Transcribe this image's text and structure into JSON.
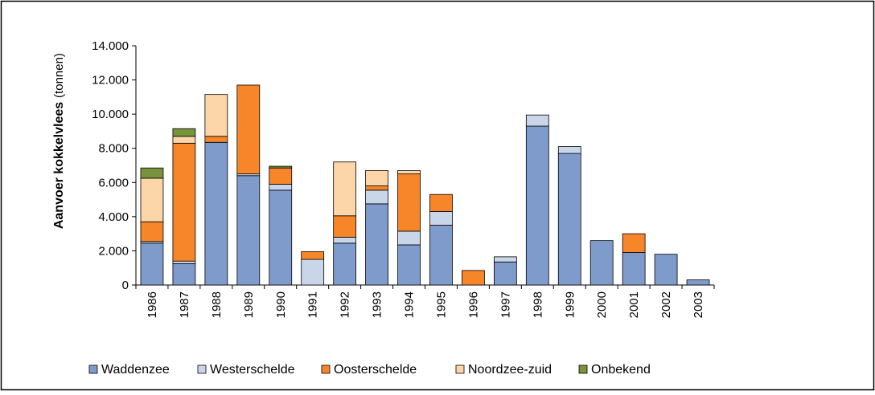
{
  "chart_data": {
    "type": "stacked-bar",
    "y_label": "Aanvoer kokkelvlees",
    "y_unit": "(tonnen)",
    "categories": [
      "1986",
      "1987",
      "1988",
      "1989",
      "1990",
      "1991",
      "1992",
      "1993",
      "1994",
      "1995",
      "1996",
      "1997",
      "1998",
      "1999",
      "2000",
      "2001",
      "2002",
      "2003"
    ],
    "series": [
      {
        "name": "Waddenzee",
        "color": "#7f9bcc",
        "values": [
          2450,
          1250,
          8350,
          6400,
          5550,
          0,
          2450,
          4750,
          2350,
          3500,
          0,
          1350,
          9300,
          7700,
          2600,
          1900,
          1800,
          300
        ]
      },
      {
        "name": "Westerschelde",
        "color": "#c9d5e8",
        "values": [
          100,
          150,
          0,
          100,
          350,
          1500,
          350,
          800,
          800,
          800,
          0,
          300,
          650,
          400,
          0,
          0,
          0,
          0
        ]
      },
      {
        "name": "Oosterschelde",
        "color": "#f7862a",
        "values": [
          1150,
          6900,
          350,
          5200,
          950,
          450,
          1250,
          250,
          3350,
          1000,
          850,
          0,
          0,
          0,
          0,
          1100,
          0,
          0
        ]
      },
      {
        "name": "Noordzee-zuid",
        "color": "#fcd5a8",
        "values": [
          2550,
          400,
          2450,
          0,
          0,
          0,
          3150,
          900,
          200,
          0,
          0,
          0,
          0,
          0,
          0,
          0,
          0,
          0
        ]
      },
      {
        "name": "Onbekend",
        "color": "#77933c",
        "values": [
          600,
          450,
          0,
          0,
          100,
          0,
          0,
          0,
          0,
          0,
          0,
          0,
          0,
          0,
          0,
          0,
          0,
          0
        ]
      }
    ],
    "ylim": [
      0,
      14000
    ],
    "yticks": [
      {
        "value": 0,
        "label": "0"
      },
      {
        "value": 2000,
        "label": "2.000"
      },
      {
        "value": 4000,
        "label": "4.000"
      },
      {
        "value": 6000,
        "label": "6.000"
      },
      {
        "value": 8000,
        "label": "8.000"
      },
      {
        "value": 10000,
        "label": "10.000"
      },
      {
        "value": 12000,
        "label": "12.000"
      },
      {
        "value": 14000,
        "label": "14.000"
      }
    ],
    "legend": "bottom"
  }
}
